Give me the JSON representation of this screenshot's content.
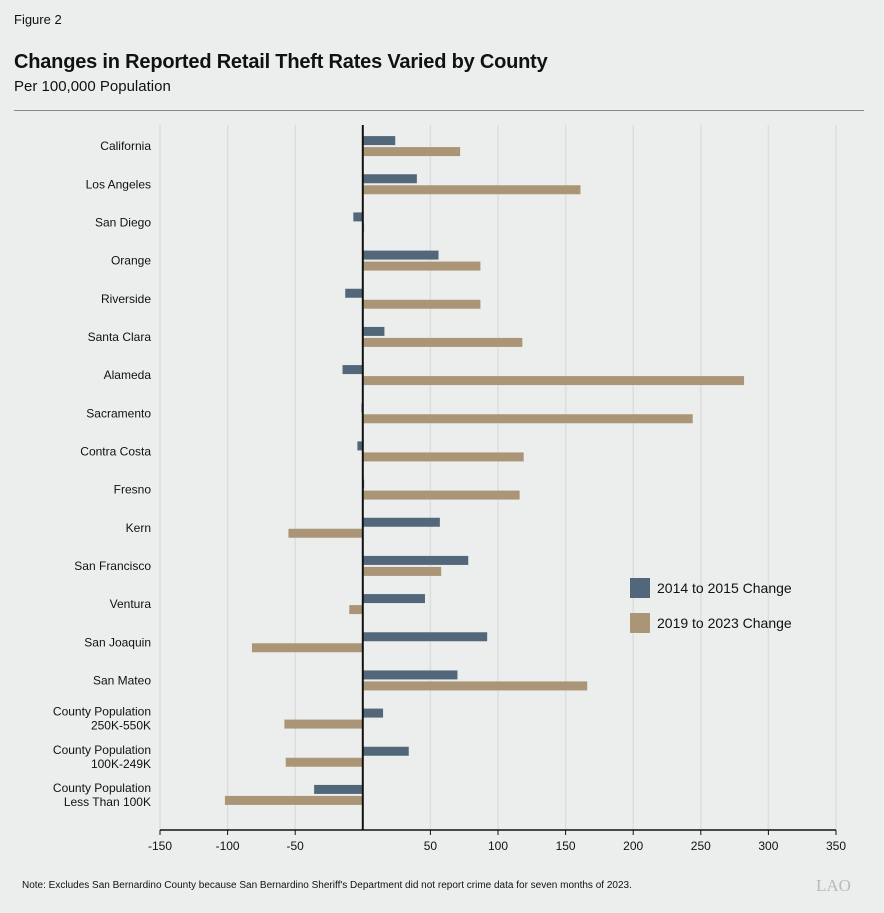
{
  "figure_label": "Figure 2",
  "title": "Changes in Reported Retail Theft Rates Varied by County",
  "subtitle": "Per 100,000 Population",
  "note": "Note: Excludes San Bernardino County because San Bernardino Sheriff's Department did not report crime data for seven months of 2023.",
  "logo": "LAO",
  "colors": {
    "series1": "#52687a",
    "series2": "#ab9577",
    "grid": "#dcdedd",
    "background": "#eceeed"
  },
  "chart_data": {
    "type": "bar",
    "orientation": "horizontal",
    "categories": [
      [
        "California"
      ],
      [
        "Los Angeles"
      ],
      [
        "San Diego"
      ],
      [
        "Orange"
      ],
      [
        "Riverside"
      ],
      [
        "Santa Clara"
      ],
      [
        "Alameda"
      ],
      [
        "Sacramento"
      ],
      [
        "Contra Costa"
      ],
      [
        "Fresno"
      ],
      [
        "Kern"
      ],
      [
        "San Francisco"
      ],
      [
        "Ventura"
      ],
      [
        "San Joaquin"
      ],
      [
        "San Mateo"
      ],
      [
        "County Population",
        "250K-550K"
      ],
      [
        "County Population",
        "100K-249K"
      ],
      [
        "County Population",
        "Less Than 100K"
      ]
    ],
    "series": [
      {
        "name": "2014 to 2015 Change",
        "values": [
          24,
          40,
          -7,
          56,
          -13,
          16,
          -15,
          -1,
          -4,
          1,
          57,
          78,
          46,
          92,
          70,
          15,
          34,
          -36
        ]
      },
      {
        "name": "2019 to 2023 Change",
        "values": [
          72,
          161,
          1,
          87,
          87,
          118,
          282,
          244,
          119,
          116,
          -55,
          58,
          -10,
          -82,
          166,
          -58,
          -57,
          -102
        ]
      }
    ],
    "xticks": [
      "-150",
      "-100",
      "-50",
      "50",
      "100",
      "150",
      "200",
      "250",
      "300",
      "350"
    ],
    "xtick_values": [
      -150,
      -100,
      -50,
      50,
      100,
      150,
      200,
      250,
      300,
      350
    ],
    "xlim": [
      -150,
      350
    ],
    "grid": "vertical",
    "legend": "right"
  }
}
